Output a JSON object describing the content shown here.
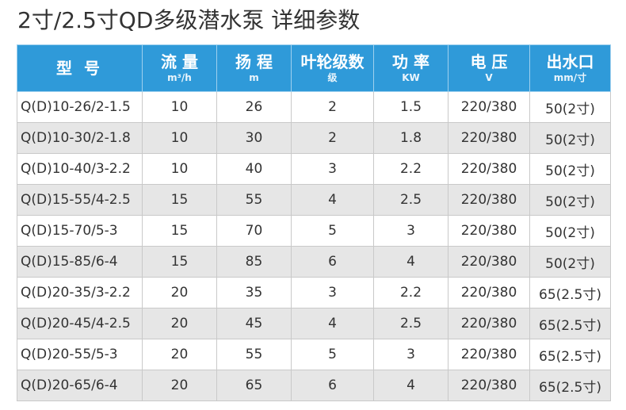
{
  "title": "2寸/2.5寸QD多级潜水泵 详细参数",
  "colors": {
    "header_bg": "#2f9ad9",
    "header_text": "#ffffff",
    "row_shade": "#e6e6e6",
    "border": "#c9c9c9"
  },
  "table": {
    "headers": [
      {
        "label": "型 号",
        "unit": ""
      },
      {
        "label": "流 量",
        "unit": "m³/h"
      },
      {
        "label": "扬 程",
        "unit": "m"
      },
      {
        "label": "叶轮级数",
        "unit": "级"
      },
      {
        "label": "功 率",
        "unit": "KW"
      },
      {
        "label": "电 压",
        "unit": "V"
      },
      {
        "label": "出水口",
        "unit": "mm/寸"
      }
    ],
    "rows": [
      [
        "Q(D)10-26/2-1.5",
        "10",
        "26",
        "2",
        "1.5",
        "220/380",
        "50(2寸)"
      ],
      [
        "Q(D)10-30/2-1.8",
        "10",
        "30",
        "2",
        "1.8",
        "220/380",
        "50(2寸)"
      ],
      [
        "Q(D)10-40/3-2.2",
        "10",
        "40",
        "3",
        "2.2",
        "220/380",
        "50(2寸)"
      ],
      [
        "Q(D)15-55/4-2.5",
        "15",
        "55",
        "4",
        "2.5",
        "220/380",
        "50(2寸)"
      ],
      [
        "Q(D)15-70/5-3",
        "15",
        "70",
        "5",
        "3",
        "220/380",
        "50(2寸)"
      ],
      [
        "Q(D)15-85/6-4",
        "15",
        "85",
        "6",
        "4",
        "220/380",
        "50(2寸)"
      ],
      [
        "Q(D)20-35/3-2.2",
        "20",
        "35",
        "3",
        "2.2",
        "220/380",
        "65(2.5寸)"
      ],
      [
        "Q(D)20-45/4-2.5",
        "20",
        "45",
        "4",
        "2.5",
        "220/380",
        "65(2.5寸)"
      ],
      [
        "Q(D)20-55/5-3",
        "20",
        "55",
        "5",
        "3",
        "220/380",
        "65(2.5寸)"
      ],
      [
        "Q(D)20-65/6-4",
        "20",
        "65",
        "6",
        "4",
        "220/380",
        "65(2.5寸)"
      ]
    ]
  }
}
